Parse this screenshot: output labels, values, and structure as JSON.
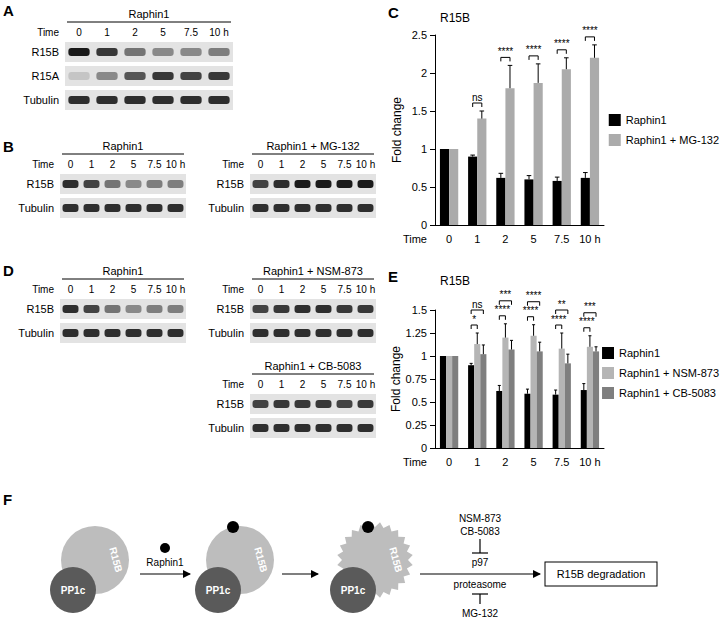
{
  "blot_panels": [
    {
      "panel": "A",
      "blots": [
        {
          "title": "Raphin1",
          "time_label": "Time",
          "lanes": [
            "0",
            "1",
            "2",
            "5",
            "7.5",
            "10 h"
          ],
          "rows": [
            {
              "label": "R15B",
              "intensity": [
                1,
                0.85,
                0.55,
                0.45,
                0.45,
                0.5
              ]
            },
            {
              "label": "R15A",
              "intensity": [
                0.15,
                0.45,
                0.7,
                0.85,
                0.8,
                0.85
              ]
            },
            {
              "label": "Tubulin",
              "intensity": [
                0.9,
                0.9,
                0.9,
                0.9,
                0.9,
                0.9
              ]
            }
          ]
        }
      ]
    },
    {
      "panel": "B",
      "blots": [
        {
          "title": "Raphin1",
          "time_label": "Time",
          "lanes": [
            "0",
            "1",
            "2",
            "5",
            "7.5",
            "10 h"
          ],
          "rows": [
            {
              "label": "R15B",
              "intensity": [
                0.9,
                0.8,
                0.55,
                0.45,
                0.5,
                0.5
              ]
            },
            {
              "label": "Tubulin",
              "intensity": [
                0.9,
                0.9,
                0.9,
                0.9,
                0.9,
                0.9
              ]
            }
          ]
        },
        {
          "title": "Raphin1 + MG-132",
          "time_label": "Time",
          "lanes": [
            "0",
            "1",
            "2",
            "5",
            "7.5",
            "10 h"
          ],
          "rows": [
            {
              "label": "R15B",
              "intensity": [
                0.8,
                0.9,
                1,
                1,
                1,
                1
              ]
            },
            {
              "label": "Tubulin",
              "intensity": [
                0.9,
                0.9,
                0.9,
                0.9,
                0.9,
                0.9
              ]
            }
          ]
        }
      ]
    },
    {
      "panel": "D",
      "blots": [
        {
          "title": "Raphin1",
          "time_label": "Time",
          "lanes": [
            "0",
            "1",
            "2",
            "5",
            "7.5",
            "10 h"
          ],
          "rows": [
            {
              "label": "R15B",
              "intensity": [
                0.9,
                0.8,
                0.55,
                0.45,
                0.5,
                0.5
              ]
            },
            {
              "label": "Tubulin",
              "intensity": [
                0.9,
                0.9,
                0.9,
                0.9,
                0.9,
                0.9
              ]
            }
          ]
        },
        {
          "title": "Raphin1 + NSM-873",
          "time_label": "Time",
          "lanes": [
            "0",
            "1",
            "2",
            "5",
            "7.5",
            "10 h"
          ],
          "rows": [
            {
              "label": "R15B",
              "intensity": [
                0.8,
                0.85,
                0.9,
                0.9,
                0.85,
                0.85
              ]
            },
            {
              "label": "Tubulin",
              "intensity": [
                0.9,
                0.9,
                0.9,
                0.9,
                0.9,
                0.9
              ]
            }
          ]
        },
        {
          "title": "Raphin1 + CB-5083",
          "time_label": "Time",
          "lanes": [
            "0",
            "1",
            "2",
            "5",
            "7.5",
            "10 h"
          ],
          "rows": [
            {
              "label": "R15B",
              "intensity": [
                0.8,
                0.85,
                0.85,
                0.85,
                0.8,
                0.85
              ]
            },
            {
              "label": "Tubulin",
              "intensity": [
                0.9,
                0.9,
                0.9,
                0.9,
                0.9,
                0.9
              ]
            }
          ]
        }
      ]
    }
  ],
  "chart_data": [
    {
      "panel": "C",
      "type": "bar",
      "title": "R15B",
      "x_label": "Time",
      "y_label": "Fold change",
      "categories": [
        "0",
        "1",
        "2",
        "5",
        "7.5",
        "10 h"
      ],
      "series": [
        {
          "name": "Raphin1",
          "color": "#000000",
          "values": [
            1,
            0.9,
            0.62,
            0.6,
            0.58,
            0.62
          ],
          "errors": [
            0,
            0.02,
            0.06,
            0.05,
            0.05,
            0.07
          ]
        },
        {
          "name": "Raphin1 + MG-132",
          "color": "#ababab",
          "values": [
            1,
            1.4,
            1.8,
            1.87,
            2.05,
            2.2
          ],
          "errors": [
            0,
            0.1,
            0.3,
            0.25,
            0.15,
            0.17
          ]
        }
      ],
      "ylim": [
        0,
        2.5
      ],
      "yticks": [
        0,
        0.5,
        1,
        1.5,
        2,
        2.5
      ],
      "grid": false,
      "legend": "right",
      "significance": [
        {
          "category": "1",
          "comparisons": [
            {
              "pair": [
                "Raphin1",
                "Raphin1 + MG-132"
              ],
              "label": "ns"
            }
          ]
        },
        {
          "category": "2",
          "comparisons": [
            {
              "pair": [
                "Raphin1",
                "Raphin1 + MG-132"
              ],
              "label": "****"
            }
          ]
        },
        {
          "category": "5",
          "comparisons": [
            {
              "pair": [
                "Raphin1",
                "Raphin1 + MG-132"
              ],
              "label": "****"
            }
          ]
        },
        {
          "category": "7.5",
          "comparisons": [
            {
              "pair": [
                "Raphin1",
                "Raphin1 + MG-132"
              ],
              "label": "****"
            }
          ]
        },
        {
          "category": "10 h",
          "comparisons": [
            {
              "pair": [
                "Raphin1",
                "Raphin1 + MG-132"
              ],
              "label": "****"
            }
          ]
        }
      ]
    },
    {
      "panel": "E",
      "type": "bar",
      "title": "R15B",
      "x_label": "Time",
      "y_label": "Fold change",
      "categories": [
        "0",
        "1",
        "2",
        "5",
        "7.5",
        "10 h"
      ],
      "series": [
        {
          "name": "Raphin1",
          "color": "#000000",
          "values": [
            1,
            0.9,
            0.62,
            0.59,
            0.58,
            0.63
          ],
          "errors": [
            0,
            0.02,
            0.06,
            0.05,
            0.05,
            0.07
          ]
        },
        {
          "name": "Raphin1 + NSM-873",
          "color": "#b5b5b5",
          "values": [
            1,
            1.13,
            1.2,
            1.22,
            1.08,
            1.1
          ],
          "errors": [
            0,
            0.12,
            0.15,
            0.12,
            0.17,
            0.12
          ]
        },
        {
          "name": "Raphin1 + CB-5083",
          "color": "#7f7f7f",
          "values": [
            1,
            1.02,
            1.07,
            1.05,
            0.92,
            1.05
          ],
          "errors": [
            0,
            0.1,
            0.1,
            0.1,
            0.1,
            0.05
          ]
        }
      ],
      "ylim": [
        0,
        1.5
      ],
      "yticks": [
        0,
        0.25,
        0.5,
        0.75,
        1,
        1.25,
        1.5
      ],
      "grid": false,
      "legend": "right",
      "significance": [
        {
          "category": "1",
          "comparisons": [
            {
              "pair": [
                "Raphin1",
                "Raphin1 + NSM-873"
              ],
              "label": "*"
            },
            {
              "pair": [
                "Raphin1",
                "Raphin1 + CB-5083"
              ],
              "label": "ns"
            }
          ]
        },
        {
          "category": "2",
          "comparisons": [
            {
              "pair": [
                "Raphin1",
                "Raphin1 + NSM-873"
              ],
              "label": "****"
            },
            {
              "pair": [
                "Raphin1",
                "Raphin1 + CB-5083"
              ],
              "label": "***"
            }
          ]
        },
        {
          "category": "5",
          "comparisons": [
            {
              "pair": [
                "Raphin1",
                "Raphin1 + NSM-873"
              ],
              "label": "****"
            },
            {
              "pair": [
                "Raphin1",
                "Raphin1 + CB-5083"
              ],
              "label": "****"
            }
          ]
        },
        {
          "category": "7.5",
          "comparisons": [
            {
              "pair": [
                "Raphin1",
                "Raphin1 + NSM-873"
              ],
              "label": "****"
            },
            {
              "pair": [
                "Raphin1",
                "Raphin1 + CB-5083"
              ],
              "label": "**"
            }
          ]
        },
        {
          "category": "10 h",
          "comparisons": [
            {
              "pair": [
                "Raphin1",
                "Raphin1 + NSM-873"
              ],
              "label": "****"
            },
            {
              "pair": [
                "Raphin1",
                "Raphin1 + CB-5083"
              ],
              "label": "***"
            }
          ]
        }
      ]
    }
  ],
  "diagram": {
    "panel": "F",
    "pp1c": "PP1c",
    "r15b": "R15B",
    "ligand": "Raphin1",
    "p97": "p97",
    "proteasome": "proteasome",
    "p97_inhibitors": [
      "NSM-873",
      "CB-5083"
    ],
    "proteasome_inhibitor": "MG-132",
    "outcome": "R15B degradation"
  }
}
